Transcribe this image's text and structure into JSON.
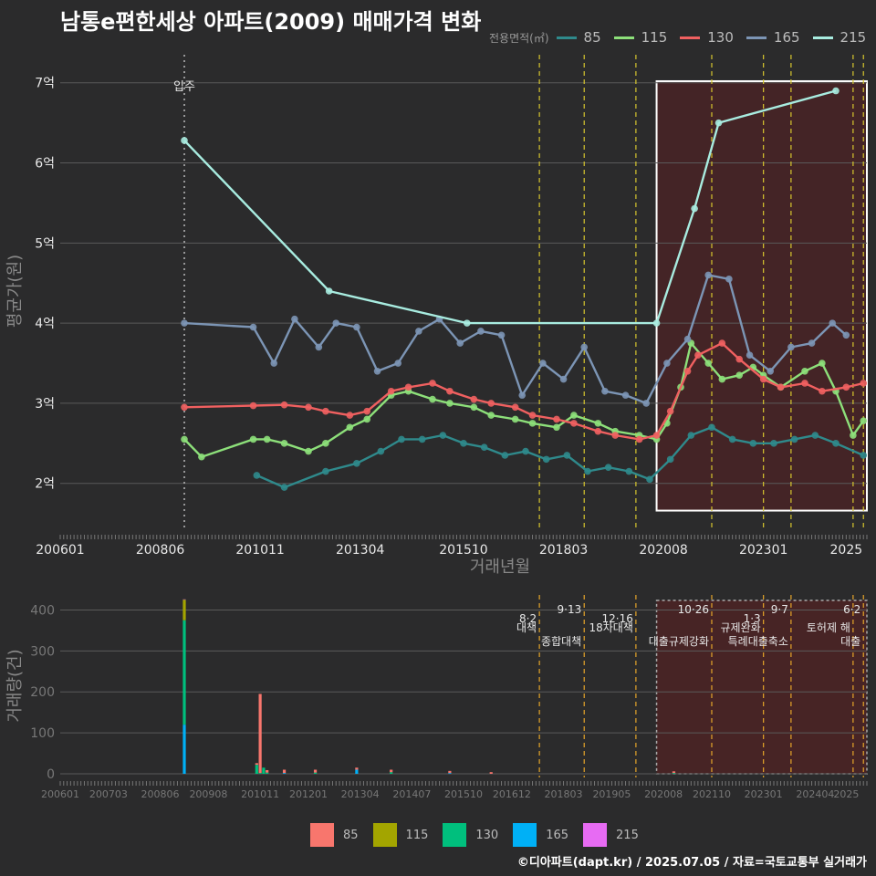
{
  "title": "남통e편한세상 아파트(2009) 매매가격 변화",
  "legend_title": "전용면적(㎡)",
  "footer": "©디아파트(dapt.kr) / 2025.07.05 / 자료=국토교통부 실거래가",
  "chart_data": [
    {
      "type": "line",
      "ylabel": "평균가(원)",
      "xlabel": "거래년월",
      "ylim": [
        1.45,
        7.35
      ],
      "y_ticks": [
        2,
        3,
        4,
        5,
        6,
        7
      ],
      "y_tick_labels": [
        "2억",
        "3억",
        "4억",
        "5억",
        "6억",
        "7억"
      ],
      "x_range": [
        "2006-01",
        "2025-07"
      ],
      "x_tick_labels": [
        "200601",
        "200806",
        "201011",
        "201304",
        "201510",
        "201803",
        "202008",
        "202301",
        "2025"
      ],
      "grid": true,
      "legend_position": "top-right",
      "move_in": {
        "date": "2009-01",
        "label": "입주"
      },
      "policy_dates": [
        "2017-08",
        "2018-09",
        "2019-12",
        "2021-10",
        "2023-01",
        "2023-09",
        "2025-03",
        "2025-06"
      ],
      "highlight": {
        "start": "2020-06",
        "end": "2025-07"
      },
      "series": [
        {
          "name": "85",
          "color": "#2f8a8c",
          "line": [
            [
              "2010-10",
              2.1
            ],
            [
              "2011-06",
              1.95
            ],
            [
              "2012-06",
              2.15
            ],
            [
              "2013-03",
              2.25
            ],
            [
              "2013-10",
              2.4
            ],
            [
              "2014-04",
              2.55
            ],
            [
              "2014-10",
              2.55
            ],
            [
              "2015-04",
              2.6
            ],
            [
              "2015-10",
              2.5
            ],
            [
              "2016-04",
              2.45
            ],
            [
              "2016-10",
              2.35
            ],
            [
              "2017-04",
              2.4
            ],
            [
              "2017-10",
              2.3
            ],
            [
              "2018-04",
              2.35
            ],
            [
              "2018-10",
              2.15
            ],
            [
              "2019-04",
              2.2
            ],
            [
              "2019-10",
              2.15
            ],
            [
              "2020-04",
              2.05
            ],
            [
              "2020-10",
              2.3
            ],
            [
              "2021-04",
              2.6
            ],
            [
              "2021-10",
              2.7
            ],
            [
              "2022-04",
              2.55
            ],
            [
              "2022-10",
              2.5
            ],
            [
              "2023-04",
              2.5
            ],
            [
              "2023-10",
              2.55
            ],
            [
              "2024-04",
              2.6
            ],
            [
              "2024-10",
              2.5
            ],
            [
              "2025-06",
              2.35
            ]
          ]
        },
        {
          "name": "115",
          "color": "#8de07a",
          "line": [
            [
              "2009-01",
              2.55
            ],
            [
              "2009-06",
              2.33
            ],
            [
              "2010-09",
              2.55
            ],
            [
              "2011-01",
              2.55
            ],
            [
              "2011-06",
              2.5
            ],
            [
              "2012-01",
              2.4
            ],
            [
              "2012-06",
              2.5
            ],
            [
              "2013-01",
              2.7
            ],
            [
              "2013-06",
              2.8
            ],
            [
              "2014-01",
              3.1
            ],
            [
              "2014-06",
              3.15
            ],
            [
              "2015-01",
              3.05
            ],
            [
              "2015-06",
              3.0
            ],
            [
              "2016-01",
              2.95
            ],
            [
              "2016-06",
              2.85
            ],
            [
              "2017-01",
              2.8
            ],
            [
              "2017-06",
              2.75
            ],
            [
              "2018-01",
              2.7
            ],
            [
              "2018-06",
              2.85
            ],
            [
              "2019-01",
              2.75
            ],
            [
              "2019-06",
              2.65
            ],
            [
              "2020-01",
              2.6
            ],
            [
              "2020-06",
              2.55
            ],
            [
              "2020-09",
              2.75
            ],
            [
              "2021-01",
              3.2
            ],
            [
              "2021-04",
              3.75
            ],
            [
              "2021-09",
              3.5
            ],
            [
              "2022-01",
              3.3
            ],
            [
              "2022-06",
              3.35
            ],
            [
              "2022-10",
              3.45
            ],
            [
              "2023-01",
              3.35
            ],
            [
              "2023-06",
              3.2
            ],
            [
              "2024-01",
              3.4
            ],
            [
              "2024-06",
              3.5
            ],
            [
              "2024-10",
              3.15
            ],
            [
              "2025-03",
              2.6
            ],
            [
              "2025-06",
              2.78
            ]
          ]
        },
        {
          "name": "130",
          "color": "#f06060",
          "line": [
            [
              "2009-01",
              2.95
            ],
            [
              "2010-09",
              2.97
            ],
            [
              "2011-06",
              2.98
            ],
            [
              "2012-01",
              2.95
            ],
            [
              "2012-06",
              2.9
            ],
            [
              "2013-01",
              2.85
            ],
            [
              "2013-06",
              2.9
            ],
            [
              "2014-01",
              3.15
            ],
            [
              "2014-06",
              3.2
            ],
            [
              "2015-01",
              3.25
            ],
            [
              "2015-06",
              3.15
            ],
            [
              "2016-01",
              3.05
            ],
            [
              "2016-06",
              3.0
            ],
            [
              "2017-01",
              2.95
            ],
            [
              "2017-06",
              2.85
            ],
            [
              "2018-01",
              2.8
            ],
            [
              "2018-06",
              2.75
            ],
            [
              "2019-01",
              2.65
            ],
            [
              "2019-06",
              2.6
            ],
            [
              "2020-01",
              2.55
            ],
            [
              "2020-06",
              2.6
            ],
            [
              "2020-10",
              2.9
            ],
            [
              "2021-03",
              3.4
            ],
            [
              "2021-06",
              3.6
            ],
            [
              "2022-01",
              3.75
            ],
            [
              "2022-06",
              3.55
            ],
            [
              "2023-01",
              3.3
            ],
            [
              "2023-06",
              3.2
            ],
            [
              "2024-01",
              3.25
            ],
            [
              "2024-06",
              3.15
            ],
            [
              "2025-01",
              3.2
            ],
            [
              "2025-06",
              3.25
            ]
          ]
        },
        {
          "name": "165",
          "color": "#7c95b5",
          "line": [
            [
              "2009-01",
              4.0
            ],
            [
              "2010-09",
              3.95
            ],
            [
              "2011-03",
              3.5
            ],
            [
              "2011-09",
              4.05
            ],
            [
              "2012-04",
              3.7
            ],
            [
              "2012-09",
              4.0
            ],
            [
              "2013-03",
              3.95
            ],
            [
              "2013-09",
              3.4
            ],
            [
              "2014-03",
              3.5
            ],
            [
              "2014-09",
              3.9
            ],
            [
              "2015-03",
              4.05
            ],
            [
              "2015-09",
              3.75
            ],
            [
              "2016-03",
              3.9
            ],
            [
              "2016-09",
              3.85
            ],
            [
              "2017-03",
              3.1
            ],
            [
              "2017-09",
              3.5
            ],
            [
              "2018-03",
              3.3
            ],
            [
              "2018-09",
              3.7
            ],
            [
              "2019-03",
              3.15
            ],
            [
              "2019-09",
              3.1
            ],
            [
              "2020-03",
              3.0
            ],
            [
              "2020-09",
              3.5
            ],
            [
              "2021-03",
              3.8
            ],
            [
              "2021-09",
              4.6
            ],
            [
              "2022-03",
              4.55
            ],
            [
              "2022-09",
              3.6
            ],
            [
              "2023-03",
              3.4
            ],
            [
              "2023-09",
              3.7
            ],
            [
              "2024-03",
              3.75
            ],
            [
              "2024-09",
              4.0
            ],
            [
              "2025-01",
              3.85
            ]
          ]
        },
        {
          "name": "215",
          "color": "#a8ece0",
          "line": [
            [
              "2009-01",
              6.28
            ],
            [
              "2012-07",
              4.4
            ],
            [
              "2015-11",
              4.0
            ],
            [
              "2020-06",
              4.0
            ],
            [
              "2021-05",
              5.43
            ],
            [
              "2021-12",
              6.5
            ],
            [
              "2024-10",
              6.9
            ]
          ]
        }
      ]
    },
    {
      "type": "bar",
      "ylabel": "거래량(건)",
      "ylim": [
        0,
        430
      ],
      "y_ticks": [
        0,
        100,
        200,
        300,
        400
      ],
      "x_range": [
        "2006-01",
        "2025-07"
      ],
      "x_tick_labels": [
        "200601",
        "200703",
        "200806",
        "200908",
        "201011",
        "201201",
        "201304",
        "201407",
        "201510",
        "201612",
        "201803",
        "201905",
        "202008",
        "202110",
        "202301",
        "202404",
        "2025"
      ],
      "grid": true,
      "legend_position": "bottom",
      "series": [
        {
          "name": "85",
          "color": "#f8766d"
        },
        {
          "name": "115",
          "color": "#a3a500"
        },
        {
          "name": "130",
          "color": "#00bf7d"
        },
        {
          "name": "165",
          "color": "#00b0f6"
        },
        {
          "name": "215",
          "color": "#e76bf3"
        }
      ],
      "bars": [
        {
          "date": "2009-01",
          "values": {
            "165": 120,
            "130": 255,
            "115": 50,
            "85": 0,
            "215": 1
          }
        },
        {
          "date": "2010-10",
          "values": {
            "130": 22,
            "85": 4
          }
        },
        {
          "date": "2010-11",
          "values": {
            "85": 193,
            "130": 2
          }
        },
        {
          "date": "2010-12",
          "values": {
            "130": 15
          }
        },
        {
          "date": "2011-01",
          "values": {
            "85": 6,
            "130": 3
          }
        },
        {
          "date": "2011-06",
          "values": {
            "85": 8,
            "165": 2
          }
        },
        {
          "date": "2012-03",
          "values": {
            "85": 7,
            "130": 3
          }
        },
        {
          "date": "2013-03",
          "values": {
            "165": 10,
            "85": 5
          }
        },
        {
          "date": "2014-01",
          "values": {
            "85": 6,
            "130": 4
          }
        },
        {
          "date": "2015-06",
          "values": {
            "85": 5,
            "165": 2
          }
        },
        {
          "date": "2016-06",
          "values": {
            "85": 4
          }
        },
        {
          "date": "2020-11",
          "values": {
            "85": 4,
            "130": 2
          }
        }
      ],
      "policy_events": [
        {
          "date": "2017-08",
          "date_label": "8·2",
          "label": "대책"
        },
        {
          "date": "2018-09",
          "date_label": "9·13",
          "label": "종합대책"
        },
        {
          "date": "2019-12",
          "date_label": "12·16",
          "label": "18차대책"
        },
        {
          "date": "2021-10",
          "date_label": "10·26",
          "label": "대출규제강화"
        },
        {
          "date": "2023-01",
          "date_label": "1·3",
          "label": "규제완화"
        },
        {
          "date": "2023-09",
          "date_label": "9·7",
          "label": "특례대출축소"
        },
        {
          "date": "2025-03",
          "date_label": "",
          "label": "토허제 해"
        },
        {
          "date": "2025-06",
          "date_label": "6·2",
          "label": "대출"
        }
      ]
    }
  ]
}
